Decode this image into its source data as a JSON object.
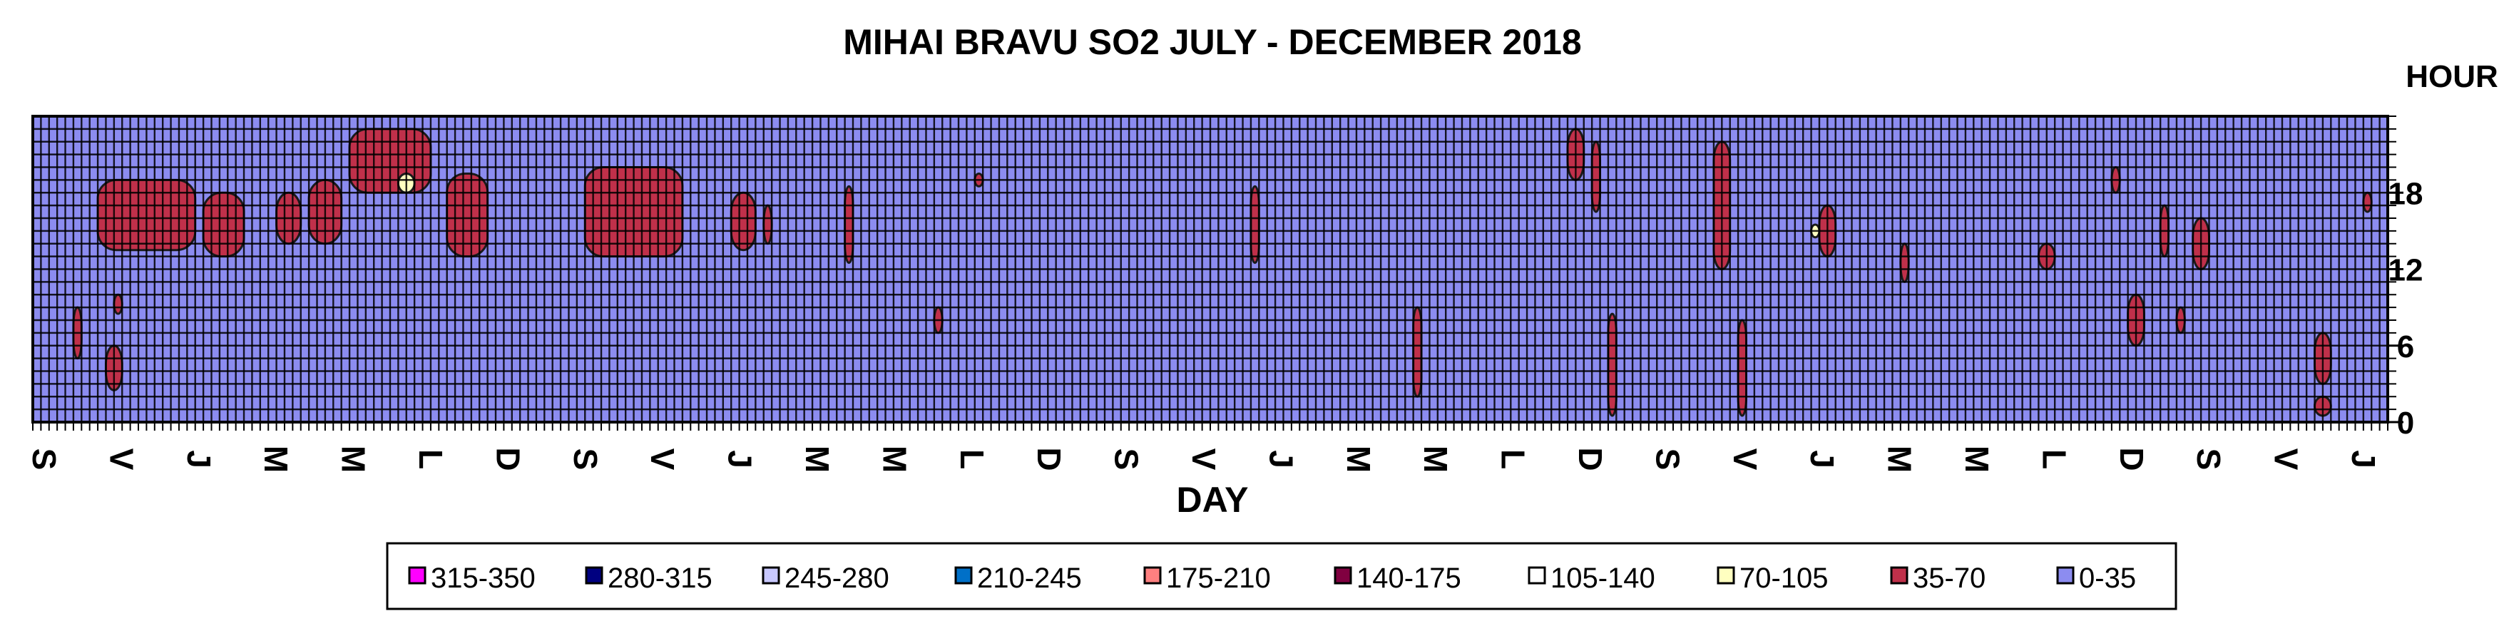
{
  "chart_data": {
    "type": "heatmap",
    "title": "MIHAI BRAVU SO2 JULY - DECEMBER 2018",
    "xlabel": "DAY",
    "ylabel": "HOUR",
    "x_tick_labels": [
      "S",
      "V",
      "J",
      "M",
      "M",
      "L",
      "D",
      "S",
      "V",
      "J",
      "M",
      "M",
      "L",
      "D",
      "S",
      "V",
      "J",
      "M",
      "M",
      "L",
      "D",
      "S",
      "V",
      "J",
      "M",
      "M",
      "L",
      "D",
      "S",
      "V",
      "J"
    ],
    "y_tick_labels": [
      "0",
      "6",
      "12",
      "18"
    ],
    "y_ticks": [
      0,
      6,
      12,
      18
    ],
    "ylim": [
      0,
      23
    ],
    "days": 184,
    "hours": 24,
    "legend": [
      {
        "label": "315-350",
        "color": "#ff00ff"
      },
      {
        "label": "280-315",
        "color": "#000080"
      },
      {
        "label": "245-280",
        "color": "#c8c8ff"
      },
      {
        "label": "210-245",
        "color": "#0070c8"
      },
      {
        "label": "175-210",
        "color": "#ff8080"
      },
      {
        "label": "140-175",
        "color": "#800040"
      },
      {
        "label": "105-140",
        "color": "#ffffff"
      },
      {
        "label": "70-105",
        "color": "#ffffc0"
      },
      {
        "label": "35-70",
        "color": "#c0304a"
      },
      {
        "label": "0-35",
        "color": "#8c8cf0"
      }
    ],
    "background_level": "0-35",
    "regions": [
      {
        "level": "35-70",
        "day": [
          8,
          20
        ],
        "hour": [
          13.5,
          19
        ]
      },
      {
        "level": "35-70",
        "day": [
          21,
          26
        ],
        "hour": [
          13,
          18
        ]
      },
      {
        "level": "35-70",
        "day": [
          30,
          33
        ],
        "hour": [
          14,
          18
        ]
      },
      {
        "level": "35-70",
        "day": [
          34,
          38
        ],
        "hour": [
          14,
          19
        ]
      },
      {
        "level": "35-70",
        "day": [
          39,
          49
        ],
        "hour": [
          18,
          23
        ]
      },
      {
        "level": "35-70",
        "day": [
          51,
          56
        ],
        "hour": [
          13,
          19.5
        ]
      },
      {
        "level": "35-70",
        "day": [
          68,
          80
        ],
        "hour": [
          13,
          20
        ]
      },
      {
        "level": "35-70",
        "day": [
          86,
          89
        ],
        "hour": [
          13.5,
          18
        ]
      },
      {
        "level": "35-70",
        "day": [
          90,
          91
        ],
        "hour": [
          14,
          17
        ]
      },
      {
        "level": "35-70",
        "day": [
          100,
          101
        ],
        "hour": [
          12.5,
          18.5
        ]
      },
      {
        "level": "35-70",
        "day": [
          116,
          117
        ],
        "hour": [
          18.5,
          19.5
        ]
      },
      {
        "level": "35-70",
        "day": [
          150,
          151
        ],
        "hour": [
          12.5,
          18.5
        ]
      },
      {
        "level": "35-70",
        "day": [
          170,
          171
        ],
        "hour": [
          2,
          9
        ]
      },
      {
        "level": "35-70",
        "day": [
          189,
          191
        ],
        "hour": [
          19,
          23
        ]
      },
      {
        "level": "35-70",
        "day": [
          192,
          193
        ],
        "hour": [
          16.5,
          22
        ]
      },
      {
        "level": "35-70",
        "day": [
          207,
          209
        ],
        "hour": [
          12,
          22
        ]
      },
      {
        "level": "35-70",
        "day": [
          220,
          222
        ],
        "hour": [
          13,
          17
        ]
      },
      {
        "level": "35-70",
        "day": [
          230,
          231
        ],
        "hour": [
          11,
          14
        ]
      },
      {
        "level": "35-70",
        "day": [
          247,
          249
        ],
        "hour": [
          12,
          14
        ]
      },
      {
        "level": "35-70",
        "day": [
          256,
          257
        ],
        "hour": [
          18,
          20
        ]
      },
      {
        "level": "35-70",
        "day": [
          258,
          260
        ],
        "hour": [
          6,
          10
        ]
      },
      {
        "level": "35-70",
        "day": [
          262,
          263
        ],
        "hour": [
          13,
          17
        ]
      },
      {
        "level": "35-70",
        "day": [
          264,
          265
        ],
        "hour": [
          7,
          9
        ]
      },
      {
        "level": "35-70",
        "day": [
          266,
          268
        ],
        "hour": [
          12,
          16
        ]
      },
      {
        "level": "35-70",
        "day": [
          281,
          283
        ],
        "hour": [
          3,
          7
        ]
      },
      {
        "level": "35-70",
        "day": [
          281,
          283
        ],
        "hour": [
          0.5,
          2
        ]
      },
      {
        "level": "35-70",
        "day": [
          287,
          288
        ],
        "hour": [
          16.5,
          18
        ]
      },
      {
        "level": "35-70",
        "day": [
          9,
          11
        ],
        "hour": [
          2.5,
          6
        ]
      },
      {
        "level": "35-70",
        "day": [
          10,
          11
        ],
        "hour": [
          8.5,
          10
        ]
      },
      {
        "level": "35-70",
        "day": [
          5,
          6
        ],
        "hour": [
          5,
          9
        ]
      },
      {
        "level": "35-70",
        "day": [
          111,
          112
        ],
        "hour": [
          7,
          9
        ]
      },
      {
        "level": "35-70",
        "day": [
          194,
          195
        ],
        "hour": [
          0.5,
          8.5
        ]
      },
      {
        "level": "35-70",
        "day": [
          210,
          211
        ],
        "hour": [
          0.5,
          8
        ]
      },
      {
        "level": "70-105",
        "day": [
          45,
          47
        ],
        "hour": [
          18,
          19.5
        ]
      },
      {
        "level": "70-105",
        "day": [
          219,
          220
        ],
        "hour": [
          14.5,
          15.5
        ]
      }
    ]
  },
  "legend_items": [
    {
      "label": "315-350"
    },
    {
      "label": "280-315"
    },
    {
      "label": "245-280"
    },
    {
      "label": "210-245"
    },
    {
      "label": "175-210"
    },
    {
      "label": "140-175"
    },
    {
      "label": "105-140"
    },
    {
      "label": "70-105"
    },
    {
      "label": "35-70"
    },
    {
      "label": "0-35"
    }
  ]
}
